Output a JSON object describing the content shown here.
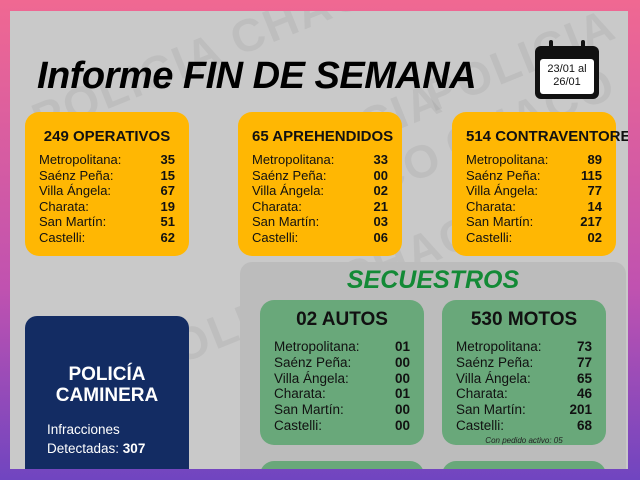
{
  "watermark": "POLICIA CHACO",
  "header": {
    "title": "Informe FIN DE SEMANA",
    "date_range": [
      "23/01 al",
      "26/01"
    ],
    "icon": "calendar-icon"
  },
  "stats": [
    {
      "title": "249 OPERATIVOS",
      "icon": "police-officer-icon",
      "rows": [
        [
          "Metropolitana:",
          "35"
        ],
        [
          "Saénz Peña:",
          "15"
        ],
        [
          "Villa Ángela:",
          "67"
        ],
        [
          "Charata:",
          "19"
        ],
        [
          "San Martín:",
          "51"
        ],
        [
          "Castelli:",
          "62"
        ]
      ]
    },
    {
      "title": "65 APREHENDIDOS",
      "icon": "prisoner-icon",
      "rows": [
        [
          "Metropolitana:",
          "33"
        ],
        [
          "Saénz Peña:",
          "00"
        ],
        [
          "Villa Ángela:",
          "02"
        ],
        [
          "Charata:",
          "21"
        ],
        [
          "San Martín:",
          "03"
        ],
        [
          "Castelli:",
          "06"
        ]
      ]
    },
    {
      "title": "514 CONTRAVENTORES",
      "icon": "book-icon",
      "rows": [
        [
          "Metropolitana:",
          "89"
        ],
        [
          "Saénz Peña:",
          "115"
        ],
        [
          "Villa Ángela:",
          "77"
        ],
        [
          "Charata:",
          "14"
        ],
        [
          "San Martín:",
          "217"
        ],
        [
          "Castelli:",
          "02"
        ]
      ]
    }
  ],
  "secuestros": {
    "title": "SECUESTROS",
    "cards": [
      {
        "title": "02 AUTOS",
        "icon": "car-icon",
        "rows": [
          [
            "Metropolitana:",
            "01"
          ],
          [
            "Saénz Peña:",
            "00"
          ],
          [
            "Villa Ángela:",
            "00"
          ],
          [
            "Charata:",
            "01"
          ],
          [
            "San Martín:",
            "00"
          ],
          [
            "Castelli:",
            "00"
          ]
        ]
      },
      {
        "title": "530 MOTOS",
        "icon": "scooter-icon",
        "rows": [
          [
            "Metropolitana:",
            "73"
          ],
          [
            "Saénz Peña:",
            "77"
          ],
          [
            "Villa Ángela:",
            "65"
          ],
          [
            "Charata:",
            "46"
          ],
          [
            "San Martín:",
            "201"
          ],
          [
            "Castelli:",
            "68"
          ]
        ],
        "note": "Con pedido activo: 05"
      }
    ]
  },
  "caminera": {
    "title_line1": "POLICÍA",
    "title_line2": "CAMINERA",
    "line1": "Infracciones",
    "line2_label": "Detectadas: ",
    "line2_value": "307"
  },
  "colors": {
    "yellow": "#ffb703",
    "green": "#69a87a",
    "navy": "#132c63",
    "title_green": "#138a36"
  }
}
